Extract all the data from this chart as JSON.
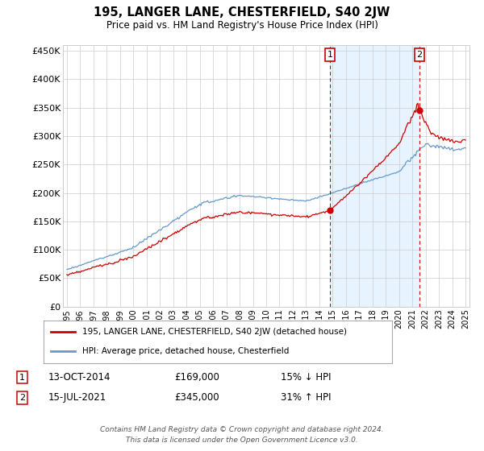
{
  "title": "195, LANGER LANE, CHESTERFIELD, S40 2JW",
  "subtitle": "Price paid vs. HM Land Registry's House Price Index (HPI)",
  "hpi_label": "HPI: Average price, detached house, Chesterfield",
  "property_label": "195, LANGER LANE, CHESTERFIELD, S40 2JW (detached house)",
  "hpi_color": "#6699cc",
  "property_color": "#cc0000",
  "vline_color": "#cc0000",
  "shade_color": "#ddeeff",
  "background_color": "#ffffff",
  "grid_color": "#cccccc",
  "ylim": [
    0,
    460000
  ],
  "yticks": [
    0,
    50000,
    100000,
    150000,
    200000,
    250000,
    300000,
    350000,
    400000,
    450000
  ],
  "ytick_labels": [
    "£0",
    "£50K",
    "£100K",
    "£150K",
    "£200K",
    "£250K",
    "£300K",
    "£350K",
    "£400K",
    "£450K"
  ],
  "xstart_year": 1995,
  "xend_year": 2025,
  "sale1_year": 2014.79,
  "sale1_price": 169000,
  "sale1_label": "1",
  "sale1_date": "13-OCT-2014",
  "sale1_hpi_pct": "15% ↓ HPI",
  "sale2_year": 2021.54,
  "sale2_price": 345000,
  "sale2_label": "2",
  "sale2_date": "15-JUL-2021",
  "sale2_hpi_pct": "31% ↑ HPI",
  "footer": "Contains HM Land Registry data © Crown copyright and database right 2024.\nThis data is licensed under the Open Government Licence v3.0."
}
